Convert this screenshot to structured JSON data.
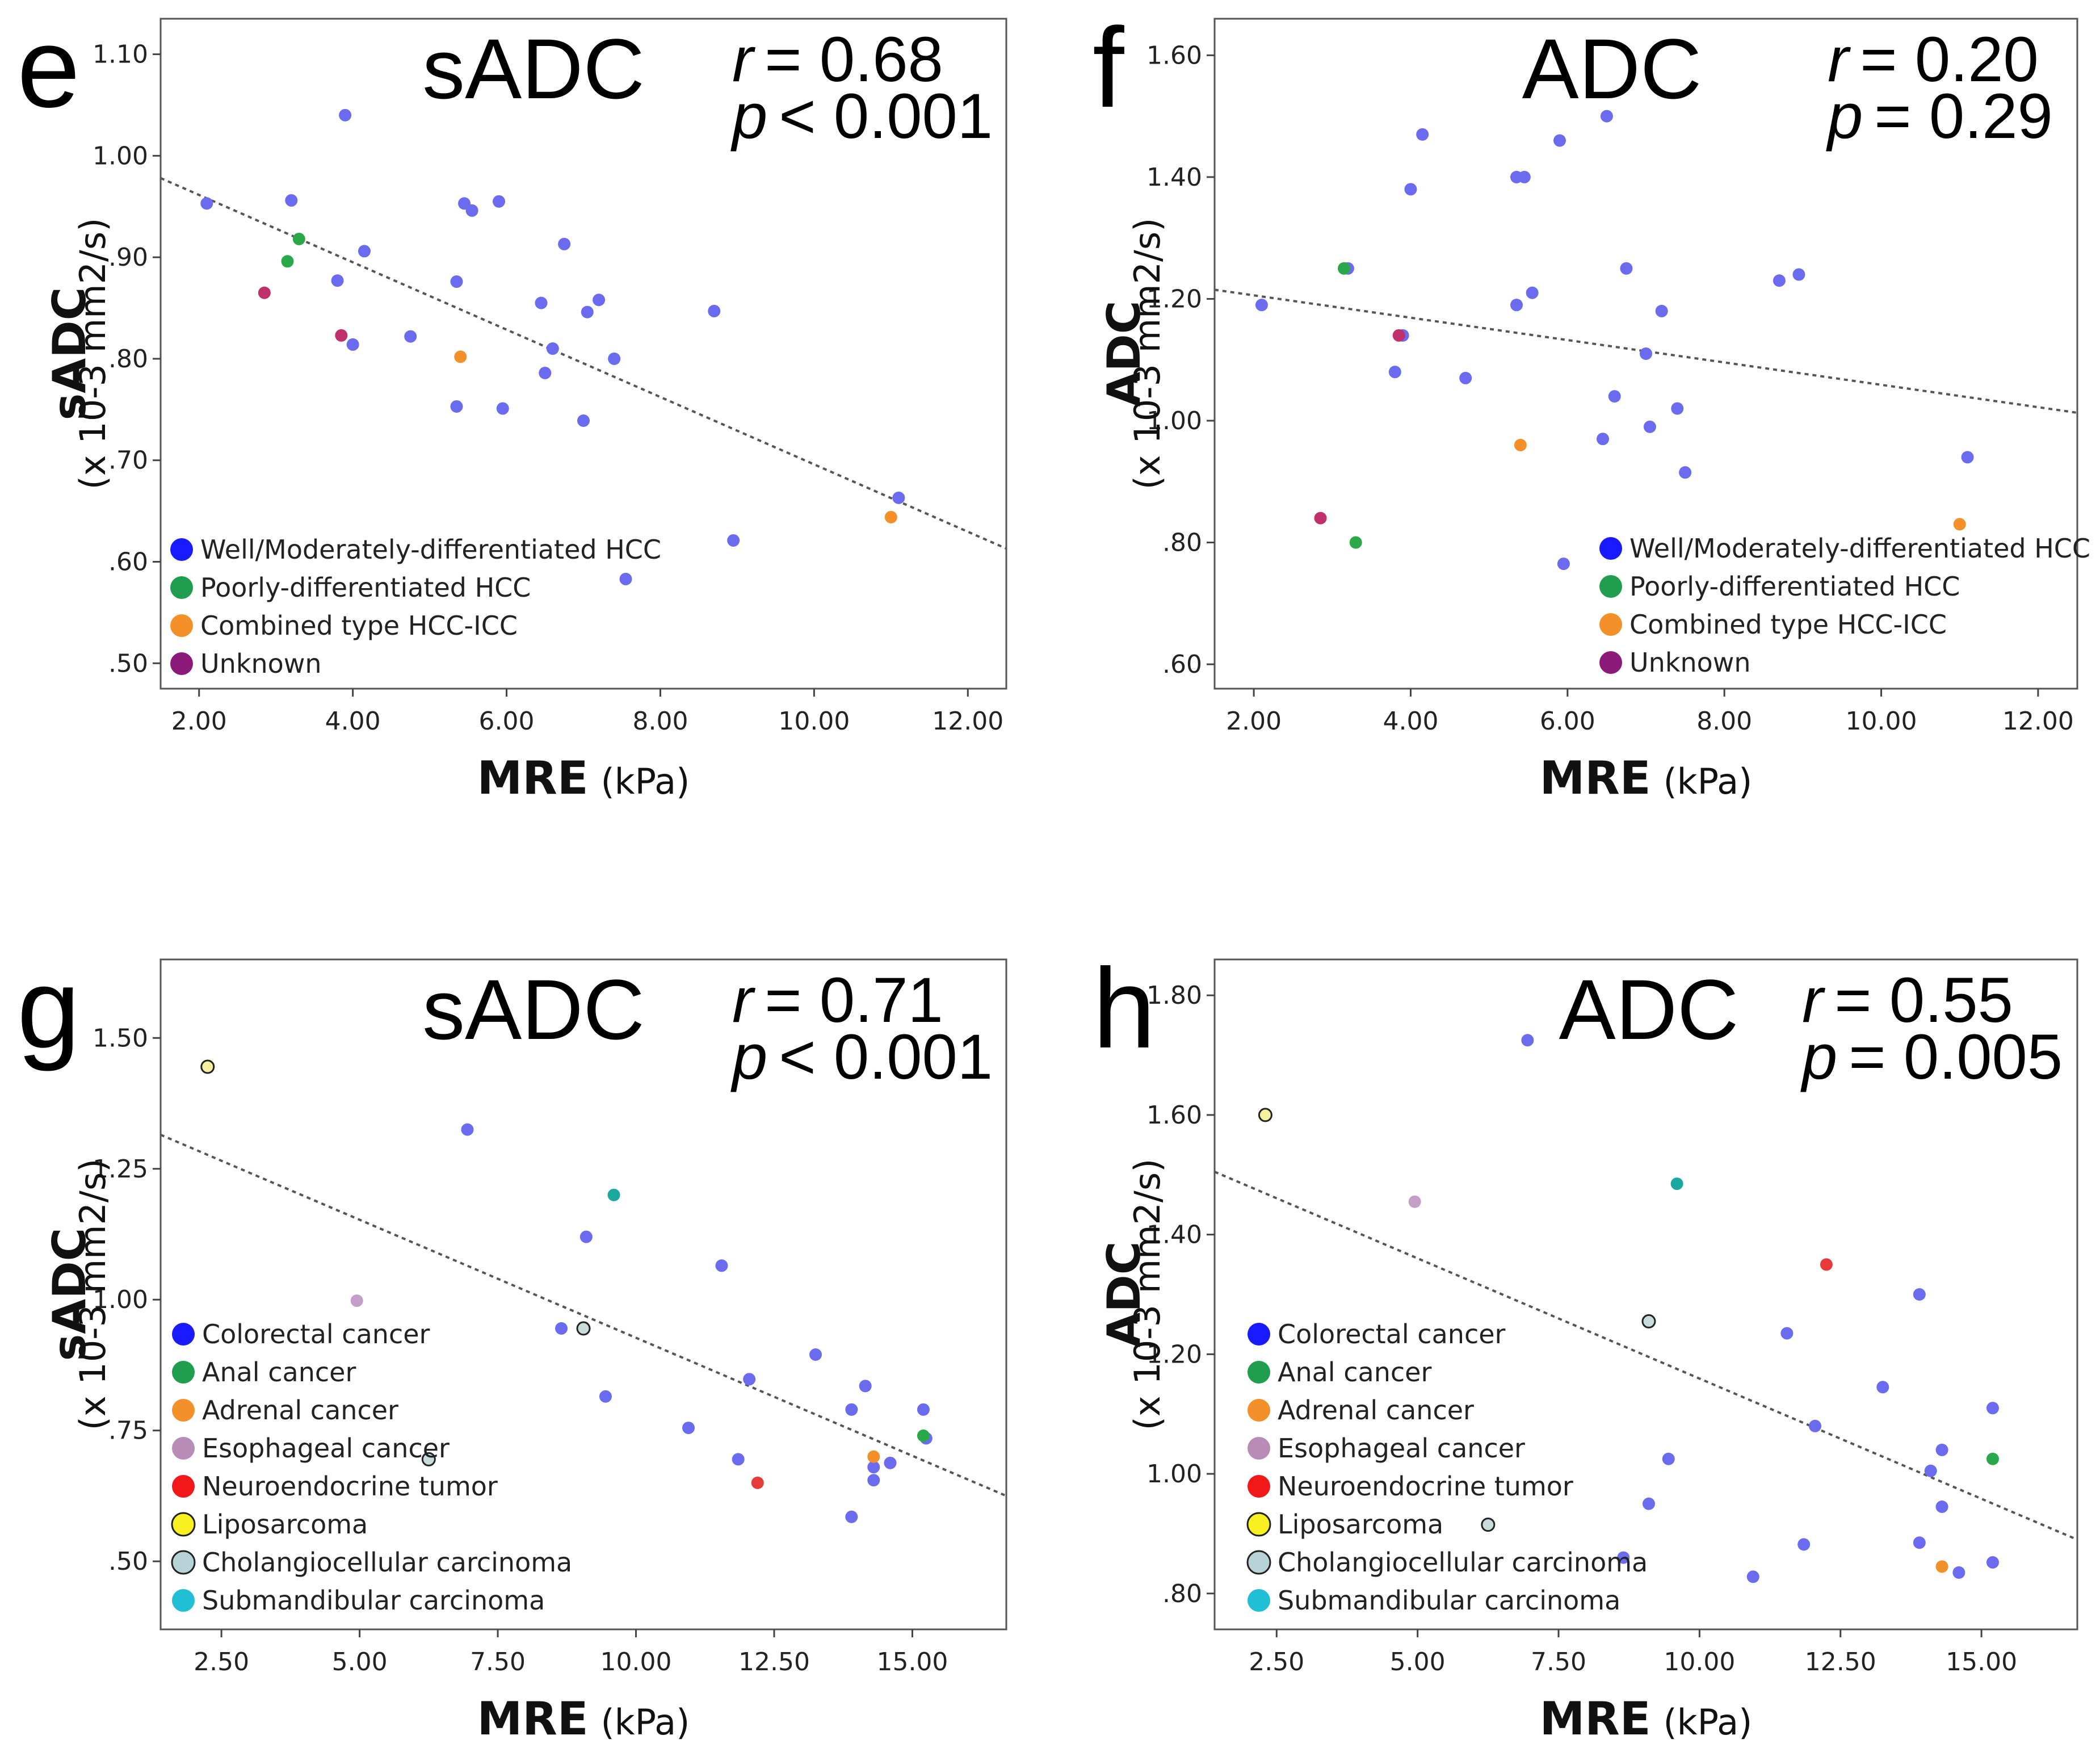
{
  "chart_data": [
    {
      "type": "scatter",
      "panel": "e",
      "title": "sADC",
      "stat_r_label": "r",
      "stat_r_value": "= 0.68",
      "stat_p_label": "p",
      "stat_p_value": "< 0.001",
      "xlabel": "MRE",
      "xunit": "(kPa)",
      "ylabel": "sADC",
      "yunit": "(x 10-3 mm2/s)",
      "xlim": [
        1.5,
        12.5
      ],
      "ylim": [
        0.475,
        1.135
      ],
      "xticks": [
        2.0,
        4.0,
        6.0,
        8.0,
        10.0,
        12.0
      ],
      "xtick_labels": [
        "2.00",
        "4.00",
        "6.00",
        "8.00",
        "10.00",
        "12.00"
      ],
      "yticks": [
        0.5,
        0.6,
        0.7,
        0.8,
        0.9,
        1.0,
        1.1
      ],
      "ytick_labels": [
        ".50",
        ".60",
        ".70",
        ".80",
        ".90",
        "1.00",
        "1.10"
      ],
      "trend_line": [
        [
          1.5,
          0.978
        ],
        [
          12.5,
          0.613
        ]
      ],
      "legend": [
        {
          "label": "Well/Moderately-differentiated HCC",
          "color": "#1a1aff",
          "outline": false
        },
        {
          "label": "Poorly-differentiated HCC",
          "color": "#1f9e4f",
          "outline": false
        },
        {
          "label": "Combined type HCC-ICC",
          "color": "#f4902a",
          "outline": false
        },
        {
          "label": "Unknown",
          "color": "#8b1a7a",
          "outline": false
        }
      ],
      "series": [
        {
          "name": "Well/Moderately-differentiated HCC",
          "color": "#6b6bf0",
          "points": [
            [
              2.1,
              0.953
            ],
            [
              3.2,
              0.956
            ],
            [
              3.9,
              1.04
            ],
            [
              3.8,
              0.877
            ],
            [
              4.0,
              0.814
            ],
            [
              4.15,
              0.906
            ],
            [
              4.75,
              0.822
            ],
            [
              5.35,
              0.876
            ],
            [
              5.35,
              0.753
            ],
            [
              5.45,
              0.953
            ],
            [
              5.55,
              0.946
            ],
            [
              5.9,
              0.955
            ],
            [
              5.95,
              0.751
            ],
            [
              6.45,
              0.855
            ],
            [
              6.5,
              0.786
            ],
            [
              6.6,
              0.81
            ],
            [
              6.75,
              0.913
            ],
            [
              7.0,
              0.739
            ],
            [
              7.05,
              0.846
            ],
            [
              7.2,
              0.858
            ],
            [
              7.4,
              0.8
            ],
            [
              7.55,
              0.583
            ],
            [
              8.7,
              0.847
            ],
            [
              8.95,
              0.621
            ],
            [
              11.1,
              0.663
            ]
          ]
        },
        {
          "name": "Poorly-differentiated HCC",
          "color": "#2aa84a",
          "points": [
            [
              3.15,
              0.896
            ],
            [
              3.3,
              0.918
            ]
          ]
        },
        {
          "name": "Combined type HCC-ICC",
          "color": "#f4902a",
          "points": [
            [
              5.4,
              0.802
            ],
            [
              11.0,
              0.644
            ]
          ]
        },
        {
          "name": "Unknown",
          "color": "#c0306a",
          "points": [
            [
              2.85,
              0.865
            ],
            [
              3.85,
              0.823
            ]
          ]
        }
      ]
    },
    {
      "type": "scatter",
      "panel": "f",
      "title": "ADC",
      "stat_r_label": "r",
      "stat_r_value": "= 0.20",
      "stat_p_label": "p",
      "stat_p_value": "= 0.29",
      "xlabel": "MRE",
      "xunit": "(kPa)",
      "ylabel": "ADC",
      "yunit": "(x 10-3 mm2/s)",
      "xlim": [
        1.5,
        12.5
      ],
      "ylim": [
        0.56,
        1.66
      ],
      "xticks": [
        2.0,
        4.0,
        6.0,
        8.0,
        10.0,
        12.0
      ],
      "xtick_labels": [
        "2.00",
        "4.00",
        "6.00",
        "8.00",
        "10.00",
        "12.00"
      ],
      "yticks": [
        0.6,
        0.8,
        1.0,
        1.2,
        1.4,
        1.6
      ],
      "ytick_labels": [
        ".60",
        ".80",
        "1.00",
        "1.20",
        "1.40",
        "1.60"
      ],
      "trend_line": [
        [
          1.5,
          1.215
        ],
        [
          12.5,
          1.013
        ]
      ],
      "legend": [
        {
          "label": "Well/Moderately-differentiated HCC",
          "color": "#1a1aff",
          "outline": false
        },
        {
          "label": "Poorly-differentiated HCC",
          "color": "#1f9e4f",
          "outline": false
        },
        {
          "label": "Combined type HCC-ICC",
          "color": "#f4902a",
          "outline": false
        },
        {
          "label": "Unknown",
          "color": "#8b1a7a",
          "outline": false
        }
      ],
      "series": [
        {
          "name": "Well/Moderately-differentiated HCC",
          "color": "#6b6bf0",
          "points": [
            [
              2.1,
              1.19
            ],
            [
              3.2,
              1.25
            ],
            [
              3.8,
              1.08
            ],
            [
              3.9,
              1.14
            ],
            [
              4.0,
              1.38
            ],
            [
              4.15,
              1.47
            ],
            [
              4.7,
              1.07
            ],
            [
              5.35,
              1.4
            ],
            [
              5.35,
              1.19
            ],
            [
              5.45,
              1.4
            ],
            [
              5.55,
              1.21
            ],
            [
              5.9,
              1.46
            ],
            [
              5.95,
              0.765
            ],
            [
              6.45,
              0.97
            ],
            [
              6.5,
              1.5
            ],
            [
              6.6,
              1.04
            ],
            [
              6.75,
              1.25
            ],
            [
              7.0,
              1.11
            ],
            [
              7.05,
              0.99
            ],
            [
              7.2,
              1.18
            ],
            [
              7.4,
              1.02
            ],
            [
              7.5,
              0.915
            ],
            [
              8.7,
              1.23
            ],
            [
              8.95,
              1.24
            ],
            [
              11.1,
              0.94
            ]
          ]
        },
        {
          "name": "Poorly-differentiated HCC",
          "color": "#2aa84a",
          "points": [
            [
              3.15,
              1.25
            ],
            [
              3.3,
              0.8
            ]
          ]
        },
        {
          "name": "Combined type HCC-ICC",
          "color": "#f4902a",
          "points": [
            [
              5.4,
              0.96
            ],
            [
              11.0,
              0.83
            ]
          ]
        },
        {
          "name": "Unknown",
          "color": "#c0306a",
          "points": [
            [
              2.85,
              0.84
            ],
            [
              3.85,
              1.14
            ]
          ]
        }
      ]
    },
    {
      "type": "scatter",
      "panel": "g",
      "title": "sADC",
      "stat_r_label": "r",
      "stat_r_value": "= 0.71",
      "stat_p_label": "p",
      "stat_p_value": "< 0.001",
      "xlabel": "MRE",
      "xunit": "(kPa)",
      "ylabel": "sADC",
      "yunit": "(x 10-3 mm2/s)",
      "xlim": [
        1.4,
        16.7
      ],
      "ylim": [
        0.37,
        1.65
      ],
      "xticks": [
        2.5,
        5.0,
        7.5,
        10.0,
        12.5,
        15.0
      ],
      "xtick_labels": [
        "2.50",
        "5.00",
        "7.50",
        "10.00",
        "12.50",
        "15.00"
      ],
      "yticks": [
        0.5,
        0.75,
        1.0,
        1.25,
        1.5
      ],
      "ytick_labels": [
        ".50",
        ".75",
        "1.00",
        "1.25",
        "1.50"
      ],
      "trend_line": [
        [
          1.4,
          1.315
        ],
        [
          16.7,
          0.625
        ]
      ],
      "legend": [
        {
          "label": "Colorectal cancer",
          "color": "#1a1aff",
          "outline": false
        },
        {
          "label": "Anal cancer",
          "color": "#1f9e4f",
          "outline": false
        },
        {
          "label": "Adrenal cancer",
          "color": "#f4902a",
          "outline": false
        },
        {
          "label": "Esophageal cancer",
          "color": "#b98cb8",
          "outline": false
        },
        {
          "label": "Neuroendocrine tumor",
          "color": "#f01818",
          "outline": false
        },
        {
          "label": "Liposarcoma",
          "color": "#f8f020",
          "outline": true
        },
        {
          "label": "Cholangiocellular carcinoma",
          "color": "#b7d3d8",
          "outline": true
        },
        {
          "label": "Submandibular carcinoma",
          "color": "#21bfd6",
          "outline": false
        }
      ],
      "series": [
        {
          "name": "Colorectal cancer",
          "color": "#6b6bf0",
          "points": [
            [
              6.95,
              1.325
            ],
            [
              8.65,
              0.945
            ],
            [
              9.1,
              1.12
            ],
            [
              9.45,
              0.815
            ],
            [
              10.95,
              0.755
            ],
            [
              11.55,
              1.065
            ],
            [
              11.85,
              0.695
            ],
            [
              12.05,
              0.848
            ],
            [
              13.25,
              0.895
            ],
            [
              13.9,
              0.79
            ],
            [
              13.9,
              0.585
            ],
            [
              14.15,
              0.835
            ],
            [
              14.3,
              0.68
            ],
            [
              14.3,
              0.655
            ],
            [
              14.6,
              0.688
            ],
            [
              15.2,
              0.79
            ],
            [
              15.25,
              0.735
            ]
          ]
        },
        {
          "name": "Anal cancer",
          "color": "#2aa84a",
          "points": [
            [
              15.2,
              0.74
            ]
          ]
        },
        {
          "name": "Adrenal cancer",
          "color": "#f4902a",
          "points": [
            [
              14.3,
              0.7
            ]
          ]
        },
        {
          "name": "Esophageal cancer",
          "color": "#c4a0c8",
          "points": [
            [
              4.95,
              0.998
            ]
          ]
        },
        {
          "name": "Neuroendocrine tumor",
          "color": "#e83a3a",
          "points": [
            [
              12.2,
              0.65
            ]
          ]
        },
        {
          "name": "Liposarcoma",
          "color": "#f4f0a0",
          "outline": true,
          "points": [
            [
              2.25,
              1.445
            ]
          ]
        },
        {
          "name": "Cholangiocellular carcinoma",
          "color": "#c8dcdc",
          "outline": true,
          "points": [
            [
              6.25,
              0.695
            ],
            [
              9.05,
              0.945
            ]
          ]
        },
        {
          "name": "Submandibular carcinoma",
          "color": "#1aa8a0",
          "points": [
            [
              9.6,
              1.2
            ]
          ]
        }
      ]
    },
    {
      "type": "scatter",
      "panel": "h",
      "title": "ADC",
      "stat_r_label": "r",
      "stat_r_value": "= 0.55",
      "stat_p_label": "p",
      "stat_p_value": "= 0.005",
      "xlabel": "MRE",
      "xunit": "(kPa)",
      "ylabel": "ADC",
      "yunit": "(x 10-3 mm2/s)",
      "xlim": [
        1.4,
        16.7
      ],
      "ylim": [
        0.74,
        1.86
      ],
      "xticks": [
        2.5,
        5.0,
        7.5,
        10.0,
        12.5,
        15.0
      ],
      "xtick_labels": [
        "2.50",
        "5.00",
        "7.50",
        "10.00",
        "12.50",
        "15.00"
      ],
      "yticks": [
        0.8,
        1.0,
        1.2,
        1.4,
        1.6,
        1.8
      ],
      "ytick_labels": [
        ".80",
        "1.00",
        "1.20",
        "1.40",
        "1.60",
        "1.80"
      ],
      "trend_line": [
        [
          1.4,
          1.505
        ],
        [
          16.7,
          0.89
        ]
      ],
      "legend": [
        {
          "label": "Colorectal cancer",
          "color": "#1a1aff",
          "outline": false
        },
        {
          "label": "Anal cancer",
          "color": "#1f9e4f",
          "outline": false
        },
        {
          "label": "Adrenal cancer",
          "color": "#f4902a",
          "outline": false
        },
        {
          "label": "Esophageal cancer",
          "color": "#b98cb8",
          "outline": false
        },
        {
          "label": "Neuroendocrine tumor",
          "color": "#f01818",
          "outline": false
        },
        {
          "label": "Liposarcoma",
          "color": "#f8f020",
          "outline": true
        },
        {
          "label": "Cholangiocellular carcinoma",
          "color": "#b7d3d8",
          "outline": true
        },
        {
          "label": "Submandibular carcinoma",
          "color": "#21bfd6",
          "outline": false
        }
      ],
      "series": [
        {
          "name": "Colorectal cancer",
          "color": "#6b6bf0",
          "points": [
            [
              6.95,
              1.725
            ],
            [
              8.65,
              0.86
            ],
            [
              9.1,
              0.95
            ],
            [
              9.45,
              1.025
            ],
            [
              10.95,
              0.828
            ],
            [
              11.55,
              1.235
            ],
            [
              11.85,
              0.882
            ],
            [
              12.05,
              1.08
            ],
            [
              13.25,
              1.145
            ],
            [
              13.9,
              0.885
            ],
            [
              13.9,
              1.3
            ],
            [
              14.1,
              1.005
            ],
            [
              14.3,
              1.04
            ],
            [
              14.3,
              0.945
            ],
            [
              14.6,
              0.835
            ],
            [
              15.2,
              1.11
            ],
            [
              15.2,
              0.852
            ]
          ]
        },
        {
          "name": "Anal cancer",
          "color": "#2aa84a",
          "points": [
            [
              15.2,
              1.025
            ]
          ]
        },
        {
          "name": "Adrenal cancer",
          "color": "#f4902a",
          "points": [
            [
              14.3,
              0.845
            ]
          ]
        },
        {
          "name": "Esophageal cancer",
          "color": "#c4a0c8",
          "points": [
            [
              4.95,
              1.455
            ]
          ]
        },
        {
          "name": "Neuroendocrine tumor",
          "color": "#e83a3a",
          "points": [
            [
              12.25,
              1.35
            ]
          ]
        },
        {
          "name": "Liposarcoma",
          "color": "#f4f0a0",
          "outline": true,
          "points": [
            [
              2.3,
              1.6
            ]
          ]
        },
        {
          "name": "Cholangiocellular carcinoma",
          "color": "#c8dcdc",
          "outline": true,
          "points": [
            [
              6.25,
              0.915
            ],
            [
              9.1,
              1.255
            ]
          ]
        },
        {
          "name": "Submandibular carcinoma",
          "color": "#1aa8a0",
          "points": [
            [
              9.6,
              1.485
            ]
          ]
        }
      ]
    }
  ]
}
